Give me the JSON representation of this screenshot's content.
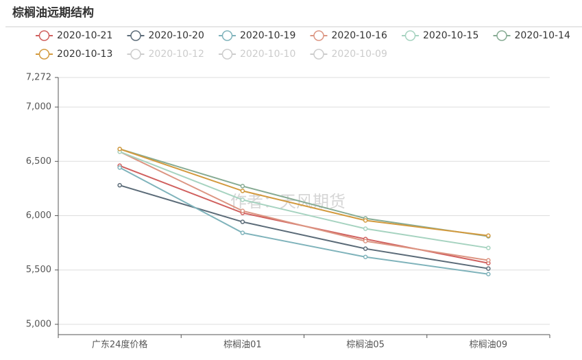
{
  "chart_data": {
    "type": "line",
    "title": "棕榈油远期结构",
    "watermark": "作者：天风期货",
    "categories": [
      "广东24度价格",
      "棕榈油01",
      "棕榈油05",
      "棕榈油09"
    ],
    "ylim": [
      4905,
      7272
    ],
    "yticks": [
      {
        "value": 5000,
        "label": "5,000"
      },
      {
        "value": 5500,
        "label": "5,500"
      },
      {
        "value": 6000,
        "label": "6,000"
      },
      {
        "value": 6500,
        "label": "6,500"
      },
      {
        "value": 7000,
        "label": "7,000"
      },
      {
        "value": 7272,
        "label": "7,272"
      }
    ],
    "grid": true,
    "series": [
      {
        "name": "2020-10-21",
        "color": "#d0605e",
        "values": [
          6460,
          6025,
          5785,
          5563
        ]
      },
      {
        "name": "2020-10-20",
        "color": "#5b6b78",
        "values": [
          6280,
          5943,
          5696,
          5513
        ]
      },
      {
        "name": "2020-10-19",
        "color": "#7fb3bb",
        "values": [
          6443,
          5842,
          5620,
          5462
        ]
      },
      {
        "name": "2020-10-16",
        "color": "#dc9582",
        "values": [
          6589,
          6044,
          5766,
          5589
        ]
      },
      {
        "name": "2020-10-15",
        "color": "#a6d3c0",
        "values": [
          6589,
          6146,
          5880,
          5703
        ]
      },
      {
        "name": "2020-10-14",
        "color": "#86ab93",
        "values": [
          6614,
          6272,
          5975,
          5810
        ]
      },
      {
        "name": "2020-10-13",
        "color": "#d39a3e",
        "values": [
          6614,
          6228,
          5956,
          5816
        ]
      },
      {
        "name": "2020-10-12",
        "color": "#cccccc",
        "values": [
          null,
          null,
          null,
          null
        ]
      },
      {
        "name": "2020-10-10",
        "color": "#cccccc",
        "values": [
          null,
          null,
          null,
          null
        ]
      },
      {
        "name": "2020-10-09",
        "color": "#cccccc",
        "values": [
          null,
          null,
          null,
          null
        ]
      }
    ]
  }
}
